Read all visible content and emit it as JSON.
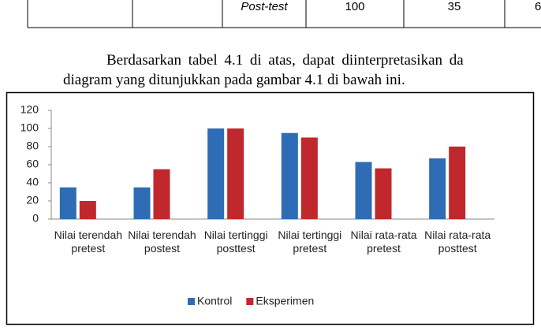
{
  "table": {
    "cells": [
      "Post-test",
      "100",
      "35",
      "6"
    ]
  },
  "paragraph": {
    "lines": [
      "Berdasarkan tabel 4.1 di atas, dapat diinterpretasikan da",
      "diagram yang ditunjukkan pada gambar 4.1 di bawah ini."
    ]
  },
  "chart_data": {
    "type": "bar",
    "categories": [
      "Nilai terendah pretest",
      "Nilai terendah postest",
      "Nilai tertinggi posttest",
      "Nilai tertinggi pretest",
      "Nilai rata-rata pretest",
      "Nilai rata-rata posttest"
    ],
    "series": [
      {
        "name": "Kontrol",
        "color": "#2e6db5",
        "values": [
          35,
          35,
          100,
          95,
          63,
          67
        ]
      },
      {
        "name": "Eksperimen",
        "color": "#c0282d",
        "values": [
          20,
          55,
          100,
          90,
          56,
          80
        ]
      }
    ],
    "ylim": [
      0,
      120
    ],
    "yticks": [
      0,
      20,
      40,
      60,
      80,
      100,
      120
    ],
    "grid": false,
    "legend": "bottom"
  }
}
